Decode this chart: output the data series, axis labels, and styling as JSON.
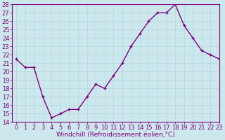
{
  "x": [
    0,
    1,
    2,
    3,
    4,
    5,
    6,
    7,
    8,
    9,
    10,
    11,
    12,
    13,
    14,
    15,
    16,
    17,
    18,
    19,
    20,
    21,
    22,
    23
  ],
  "y": [
    21.5,
    20.5,
    20.5,
    17.0,
    14.5,
    15.0,
    15.5,
    15.5,
    17.0,
    18.5,
    18.0,
    19.5,
    21.0,
    23.0,
    24.5,
    26.0,
    27.0,
    27.0,
    28.0,
    25.5,
    24.0,
    22.5,
    22.0,
    21.5
  ],
  "line_color": "#800080",
  "marker": "+",
  "marker_size": 3,
  "marker_edge_width": 1.0,
  "line_width": 1.0,
  "xlabel": "Windchill (Refroidissement éolien,°C)",
  "ylim": [
    14,
    28
  ],
  "xlim": [
    -0.5,
    23
  ],
  "yticks": [
    14,
    15,
    16,
    17,
    18,
    19,
    20,
    21,
    22,
    23,
    24,
    25,
    26,
    27,
    28
  ],
  "xticks": [
    0,
    1,
    2,
    3,
    4,
    5,
    6,
    7,
    8,
    9,
    10,
    11,
    12,
    13,
    14,
    15,
    16,
    17,
    18,
    19,
    20,
    21,
    22,
    23
  ],
  "background_color": "#cde8ec",
  "grid_color": "#b0d8de",
  "label_color": "#800080",
  "tick_color": "#800080",
  "spine_color": "#800080",
  "font_size": 6,
  "xlabel_font_size": 6.5
}
